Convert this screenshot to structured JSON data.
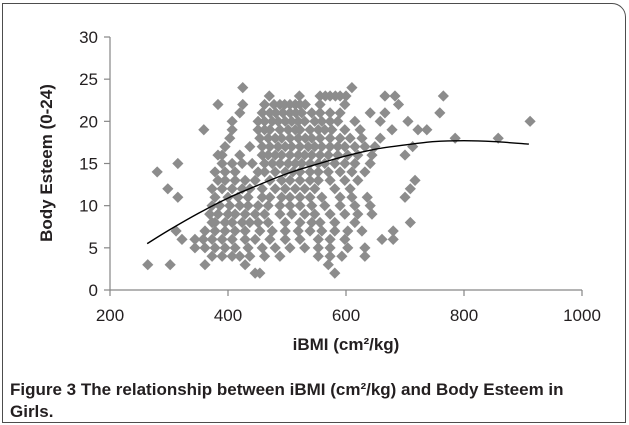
{
  "caption": {
    "label": "Figure 3",
    "text": "The relationship between iBMI (cm²/kg) and Body Esteem in Girls."
  },
  "chart_data": {
    "type": "scatter",
    "title": "",
    "xlabel": "iBMI (cm²/kg)",
    "ylabel": "Body Esteem (0-24)",
    "xlim": [
      200,
      1000
    ],
    "ylim": [
      0,
      30
    ],
    "xticks": [
      200,
      400,
      600,
      800,
      1000
    ],
    "yticks": [
      0,
      5,
      10,
      15,
      20,
      25,
      30
    ],
    "grid": false,
    "legend": "none",
    "colors": {
      "marker": "#8c8c8c",
      "trend_line": "#000000",
      "axis": "#868686"
    },
    "series": [
      {
        "type": "scatter",
        "marker": "diamond",
        "points": [
          [
            425,
            24
          ],
          [
            610,
            24
          ],
          [
            470,
            23
          ],
          [
            521,
            23
          ],
          [
            556,
            23
          ],
          [
            565,
            23
          ],
          [
            573,
            23
          ],
          [
            582,
            23
          ],
          [
            590,
            23
          ],
          [
            600,
            23
          ],
          [
            666,
            23
          ],
          [
            683,
            23
          ],
          [
            765,
            23
          ],
          [
            383,
            22
          ],
          [
            425,
            22
          ],
          [
            462,
            22
          ],
          [
            478,
            22
          ],
          [
            488,
            22
          ],
          [
            496,
            22
          ],
          [
            505,
            22
          ],
          [
            514,
            22
          ],
          [
            522,
            22
          ],
          [
            531,
            22
          ],
          [
            556,
            22
          ],
          [
            598,
            22
          ],
          [
            689,
            22
          ],
          [
            420,
            21
          ],
          [
            458,
            21
          ],
          [
            471,
            21
          ],
          [
            481,
            21
          ],
          [
            493,
            21
          ],
          [
            505,
            21
          ],
          [
            515,
            21
          ],
          [
            525,
            21
          ],
          [
            542,
            21
          ],
          [
            556,
            21
          ],
          [
            573,
            21
          ],
          [
            590,
            21
          ],
          [
            641,
            21
          ],
          [
            666,
            21
          ],
          [
            759,
            21
          ],
          [
            407,
            20
          ],
          [
            451,
            20
          ],
          [
            462,
            20
          ],
          [
            475,
            20
          ],
          [
            485,
            20
          ],
          [
            497,
            20
          ],
          [
            508,
            20
          ],
          [
            519,
            20
          ],
          [
            530,
            20
          ],
          [
            547,
            20
          ],
          [
            559,
            20
          ],
          [
            573,
            20
          ],
          [
            586,
            20
          ],
          [
            615,
            20
          ],
          [
            658,
            20
          ],
          [
            705,
            20
          ],
          [
            912,
            20
          ],
          [
            359,
            19
          ],
          [
            407,
            19
          ],
          [
            451,
            19
          ],
          [
            462,
            19
          ],
          [
            471,
            19
          ],
          [
            488,
            19
          ],
          [
            502,
            19
          ],
          [
            514,
            19
          ],
          [
            522,
            19
          ],
          [
            539,
            19
          ],
          [
            553,
            19
          ],
          [
            564,
            19
          ],
          [
            576,
            19
          ],
          [
            598,
            19
          ],
          [
            624,
            19
          ],
          [
            678,
            19
          ],
          [
            722,
            19
          ],
          [
            737,
            19
          ],
          [
            403,
            18
          ],
          [
            454,
            18
          ],
          [
            468,
            18
          ],
          [
            480,
            18
          ],
          [
            491,
            18
          ],
          [
            505,
            18
          ],
          [
            519,
            18
          ],
          [
            531,
            18
          ],
          [
            542,
            18
          ],
          [
            556,
            18
          ],
          [
            573,
            18
          ],
          [
            590,
            18
          ],
          [
            607,
            18
          ],
          [
            627,
            18
          ],
          [
            658,
            18
          ],
          [
            785,
            18
          ],
          [
            858,
            18
          ],
          [
            395,
            17
          ],
          [
            437,
            17
          ],
          [
            458,
            17
          ],
          [
            471,
            17
          ],
          [
            485,
            17
          ],
          [
            497,
            17
          ],
          [
            508,
            17
          ],
          [
            522,
            17
          ],
          [
            536,
            17
          ],
          [
            547,
            17
          ],
          [
            559,
            17
          ],
          [
            573,
            17
          ],
          [
            586,
            17
          ],
          [
            598,
            17
          ],
          [
            615,
            17
          ],
          [
            632,
            17
          ],
          [
            649,
            17
          ],
          [
            713,
            17
          ],
          [
            383,
            16
          ],
          [
            390,
            16
          ],
          [
            420,
            16
          ],
          [
            458,
            16
          ],
          [
            468,
            16
          ],
          [
            480,
            16
          ],
          [
            491,
            16
          ],
          [
            505,
            16
          ],
          [
            519,
            16
          ],
          [
            530,
            16
          ],
          [
            542,
            16
          ],
          [
            556,
            16
          ],
          [
            570,
            16
          ],
          [
            586,
            16
          ],
          [
            603,
            16
          ],
          [
            620,
            16
          ],
          [
            644,
            16
          ],
          [
            700,
            16
          ],
          [
            315,
            15
          ],
          [
            390,
            15
          ],
          [
            407,
            15
          ],
          [
            424,
            15
          ],
          [
            441,
            15
          ],
          [
            462,
            15
          ],
          [
            475,
            15
          ],
          [
            488,
            15
          ],
          [
            502,
            15
          ],
          [
            514,
            15
          ],
          [
            525,
            15
          ],
          [
            539,
            15
          ],
          [
            553,
            15
          ],
          [
            564,
            15
          ],
          [
            581,
            15
          ],
          [
            598,
            15
          ],
          [
            615,
            15
          ],
          [
            641,
            15
          ],
          [
            280,
            14
          ],
          [
            378,
            14
          ],
          [
            395,
            14
          ],
          [
            412,
            14
          ],
          [
            451,
            14
          ],
          [
            462,
            14
          ],
          [
            480,
            14
          ],
          [
            497,
            14
          ],
          [
            510,
            14
          ],
          [
            522,
            14
          ],
          [
            539,
            14
          ],
          [
            553,
            14
          ],
          [
            570,
            14
          ],
          [
            590,
            14
          ],
          [
            610,
            14
          ],
          [
            632,
            14
          ],
          [
            383,
            13
          ],
          [
            395,
            13
          ],
          [
            412,
            13
          ],
          [
            429,
            13
          ],
          [
            446,
            13
          ],
          [
            471,
            13
          ],
          [
            491,
            13
          ],
          [
            505,
            13
          ],
          [
            522,
            13
          ],
          [
            539,
            13
          ],
          [
            553,
            13
          ],
          [
            573,
            13
          ],
          [
            598,
            13
          ],
          [
            620,
            13
          ],
          [
            717,
            13
          ],
          [
            298,
            12
          ],
          [
            373,
            12
          ],
          [
            390,
            12
          ],
          [
            407,
            12
          ],
          [
            424,
            12
          ],
          [
            437,
            12
          ],
          [
            458,
            12
          ],
          [
            480,
            12
          ],
          [
            497,
            12
          ],
          [
            514,
            12
          ],
          [
            530,
            12
          ],
          [
            547,
            12
          ],
          [
            581,
            12
          ],
          [
            607,
            12
          ],
          [
            709,
            12
          ],
          [
            315,
            11
          ],
          [
            378,
            11
          ],
          [
            400,
            11
          ],
          [
            417,
            11
          ],
          [
            434,
            11
          ],
          [
            458,
            11
          ],
          [
            471,
            11
          ],
          [
            491,
            11
          ],
          [
            505,
            11
          ],
          [
            522,
            11
          ],
          [
            539,
            11
          ],
          [
            559,
            11
          ],
          [
            590,
            11
          ],
          [
            610,
            11
          ],
          [
            636,
            11
          ],
          [
            700,
            11
          ],
          [
            373,
            10
          ],
          [
            386,
            10
          ],
          [
            403,
            10
          ],
          [
            420,
            10
          ],
          [
            434,
            10
          ],
          [
            451,
            10
          ],
          [
            468,
            10
          ],
          [
            488,
            10
          ],
          [
            505,
            10
          ],
          [
            522,
            10
          ],
          [
            542,
            10
          ],
          [
            564,
            10
          ],
          [
            590,
            10
          ],
          [
            615,
            10
          ],
          [
            641,
            10
          ],
          [
            369,
            9
          ],
          [
            383,
            9
          ],
          [
            400,
            9
          ],
          [
            412,
            9
          ],
          [
            429,
            9
          ],
          [
            446,
            9
          ],
          [
            462,
            9
          ],
          [
            488,
            9
          ],
          [
            508,
            9
          ],
          [
            530,
            9
          ],
          [
            547,
            9
          ],
          [
            573,
            9
          ],
          [
            598,
            9
          ],
          [
            620,
            9
          ],
          [
            644,
            9
          ],
          [
            373,
            8
          ],
          [
            378,
            8
          ],
          [
            395,
            8
          ],
          [
            407,
            8
          ],
          [
            424,
            8
          ],
          [
            437,
            8
          ],
          [
            451,
            8
          ],
          [
            468,
            8
          ],
          [
            497,
            8
          ],
          [
            522,
            8
          ],
          [
            542,
            8
          ],
          [
            556,
            8
          ],
          [
            581,
            8
          ],
          [
            615,
            8
          ],
          [
            709,
            8
          ],
          [
            312,
            7
          ],
          [
            361,
            7
          ],
          [
            378,
            7
          ],
          [
            395,
            7
          ],
          [
            412,
            7
          ],
          [
            429,
            7
          ],
          [
            454,
            7
          ],
          [
            475,
            7
          ],
          [
            497,
            7
          ],
          [
            519,
            7
          ],
          [
            539,
            7
          ],
          [
            559,
            7
          ],
          [
            581,
            7
          ],
          [
            603,
            7
          ],
          [
            627,
            7
          ],
          [
            680,
            7
          ],
          [
            322,
            6
          ],
          [
            344,
            6
          ],
          [
            358,
            6
          ],
          [
            373,
            6
          ],
          [
            390,
            6
          ],
          [
            407,
            6
          ],
          [
            429,
            6
          ],
          [
            446,
            6
          ],
          [
            471,
            6
          ],
          [
            497,
            6
          ],
          [
            522,
            6
          ],
          [
            553,
            6
          ],
          [
            573,
            6
          ],
          [
            598,
            6
          ],
          [
            661,
            6
          ],
          [
            680,
            6
          ],
          [
            344,
            5
          ],
          [
            361,
            5
          ],
          [
            378,
            5
          ],
          [
            395,
            5
          ],
          [
            412,
            5
          ],
          [
            434,
            5
          ],
          [
            458,
            5
          ],
          [
            480,
            5
          ],
          [
            505,
            5
          ],
          [
            530,
            5
          ],
          [
            553,
            5
          ],
          [
            573,
            5
          ],
          [
            603,
            5
          ],
          [
            632,
            5
          ],
          [
            373,
            4
          ],
          [
            390,
            4
          ],
          [
            407,
            4
          ],
          [
            420,
            4
          ],
          [
            437,
            4
          ],
          [
            462,
            4
          ],
          [
            488,
            4
          ],
          [
            553,
            4
          ],
          [
            573,
            4
          ],
          [
            593,
            4
          ],
          [
            632,
            4
          ],
          [
            264,
            3
          ],
          [
            302,
            3
          ],
          [
            361,
            3
          ],
          [
            429,
            3
          ],
          [
            570,
            3
          ],
          [
            446,
            2
          ],
          [
            454,
            2
          ],
          [
            581,
            2
          ]
        ]
      },
      {
        "type": "line",
        "x": [
          263,
          300,
          350,
          400,
          450,
          500,
          550,
          600,
          650,
          700,
          750,
          800,
          850,
          910
        ],
        "y": [
          5.5,
          7.1,
          9.1,
          10.9,
          12.4,
          13.8,
          14.9,
          15.9,
          16.7,
          17.2,
          17.6,
          17.7,
          17.6,
          17.3
        ]
      }
    ]
  }
}
